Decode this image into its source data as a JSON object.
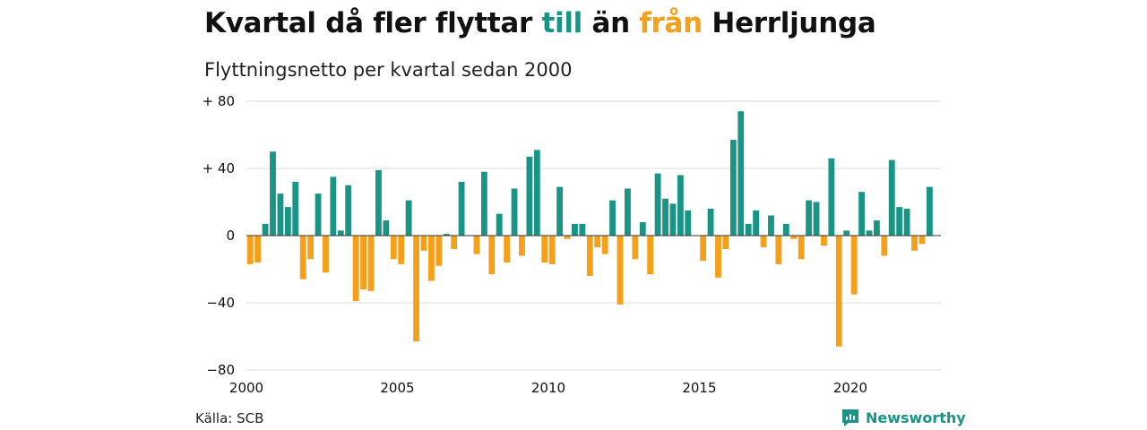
{
  "header": {
    "title_parts": [
      {
        "text": "Kvartal då fler flyttar ",
        "color": "#111111"
      },
      {
        "text": "till",
        "color": "#1a9484"
      },
      {
        "text": " än ",
        "color": "#111111"
      },
      {
        "text": "från",
        "color": "#f5a01a"
      },
      {
        "text": " Herrljunga",
        "color": "#111111"
      }
    ],
    "subtitle": "Flyttningsnetto per kvartal sedan 2000"
  },
  "footer": {
    "source": "Källa: SCB",
    "logo_text": "Newsworthy"
  },
  "colors": {
    "positive": "#1a9484",
    "negative": "#f5a01a",
    "grid": "#dddddd",
    "zero_line": "#333333"
  },
  "chart_data": {
    "type": "bar",
    "x_start_year": 2000,
    "ylim": [
      -80,
      80
    ],
    "yticks": [
      {
        "value": 80,
        "label": "+ 80"
      },
      {
        "value": 40,
        "label": "+ 40"
      },
      {
        "value": 0,
        "label": "0"
      },
      {
        "value": -40,
        "label": "−40"
      },
      {
        "value": -80,
        "label": "−80"
      }
    ],
    "xticks": [
      {
        "year": 2000,
        "label": "2000"
      },
      {
        "year": 2005,
        "label": "2005"
      },
      {
        "year": 2010,
        "label": "2010"
      },
      {
        "year": 2015,
        "label": "2015"
      },
      {
        "year": 2020,
        "label": "2020"
      }
    ],
    "values": [
      -17,
      -16,
      7,
      50,
      25,
      17,
      32,
      -26,
      -14,
      25,
      -22,
      35,
      3,
      30,
      -39,
      -32,
      -33,
      39,
      9,
      -14,
      -17,
      21,
      -63,
      -9,
      -27,
      -18,
      1,
      -8,
      32,
      0,
      -11,
      38,
      -23,
      13,
      -16,
      28,
      -12,
      47,
      51,
      -16,
      -17,
      29,
      -2,
      7,
      7,
      -24,
      -7,
      -11,
      21,
      -41,
      28,
      -14,
      8,
      -23,
      37,
      22,
      19,
      36,
      15,
      0,
      -15,
      16,
      -25,
      -8,
      57,
      74,
      7,
      15,
      -7,
      12,
      -17,
      7,
      -2,
      -14,
      21,
      20,
      -6,
      46,
      -66,
      3,
      -35,
      26,
      3,
      9,
      -12,
      45,
      17,
      16,
      -9,
      -5,
      29
    ]
  }
}
